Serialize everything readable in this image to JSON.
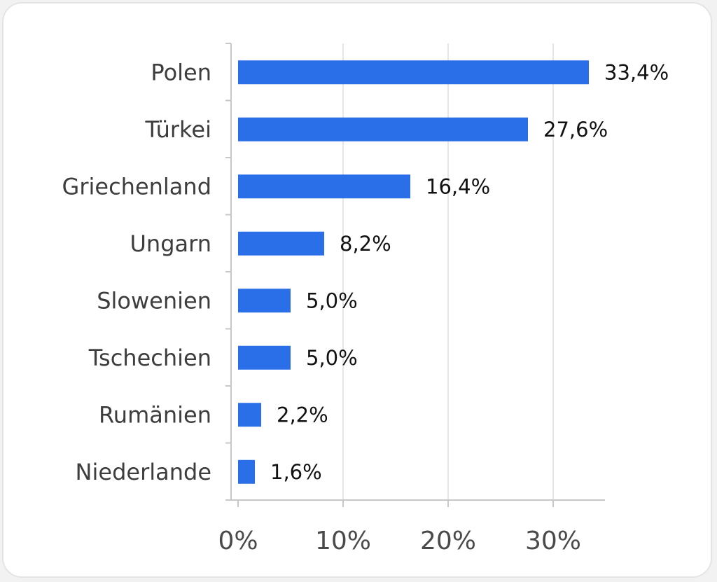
{
  "chart_data": {
    "type": "bar",
    "orientation": "horizontal",
    "categories": [
      "Polen",
      "Türkei",
      "Griechenland",
      "Ungarn",
      "Slowenien",
      "Tschechien",
      "Rumänien",
      "Niederlande"
    ],
    "values": [
      33.4,
      27.6,
      16.4,
      8.2,
      5.0,
      5.0,
      2.2,
      1.6
    ],
    "value_labels": [
      "33,4%",
      "27,6%",
      "16,4%",
      "8,2%",
      "5,0%",
      "5,0%",
      "2,2%",
      "1,6%"
    ],
    "x_ticks": [
      0,
      10,
      20,
      30
    ],
    "x_tick_labels": [
      "0%",
      "10%",
      "20%",
      "30%"
    ],
    "xlim": [
      0,
      35
    ],
    "title": "",
    "xlabel": "",
    "ylabel": "",
    "grid": "vertical",
    "legend": "none",
    "colors": {
      "bar": "#2b6fe8",
      "grid": "#e6e6e6",
      "axis": "#c8c8c8"
    }
  }
}
